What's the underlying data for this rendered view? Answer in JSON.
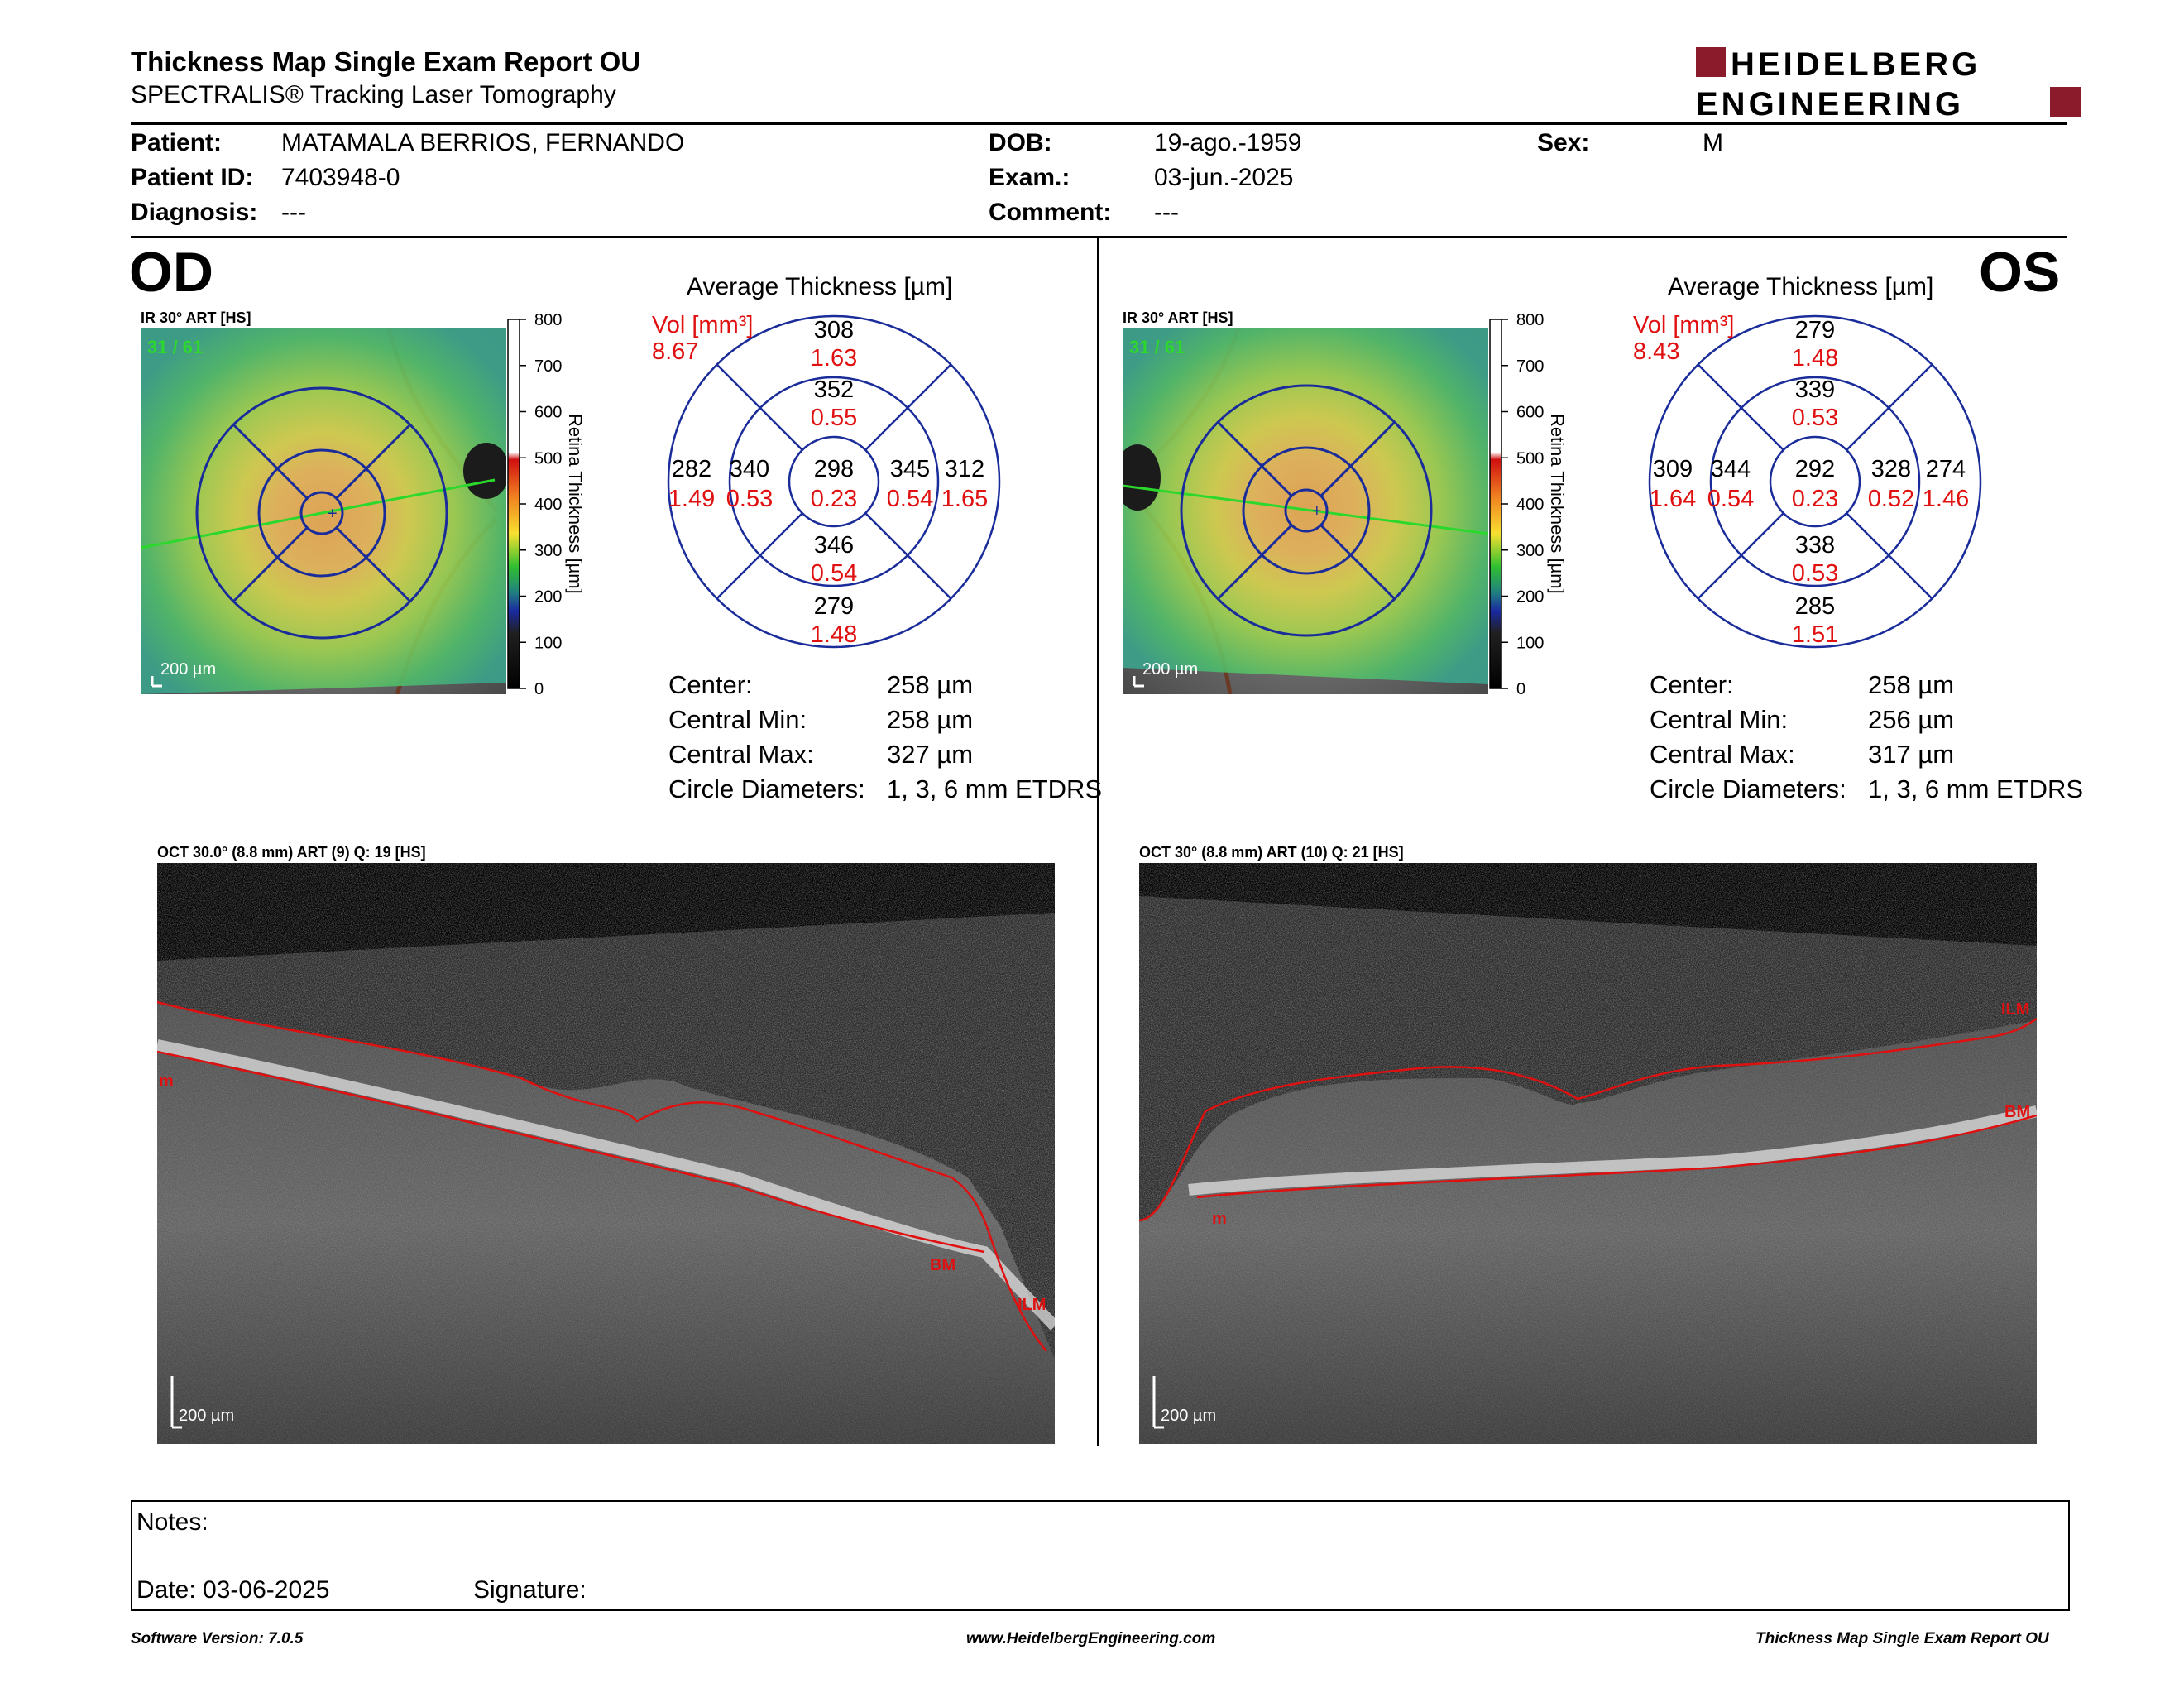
{
  "header": {
    "title": "Thickness Map Single Exam Report OU",
    "subtitle": "SPECTRALIS® Tracking Laser Tomography",
    "logo_line1": "HEIDELBERG",
    "logo_line2": "ENGINEERING",
    "logo_color": "#8b1a2b"
  },
  "patient": {
    "patient_label": "Patient:",
    "patient_value": "MATAMALA BERRIOS, FERNANDO",
    "patient_id_label": "Patient ID:",
    "patient_id_value": "7403948-0",
    "diagnosis_label": "Diagnosis:",
    "diagnosis_value": "---",
    "dob_label": "DOB:",
    "dob_value": "19-ago.-1959",
    "exam_label": "Exam.:",
    "exam_value": "03-jun.-2025",
    "comment_label": "Comment:",
    "comment_value": "---",
    "sex_label": "Sex:",
    "sex_value": "M"
  },
  "od": {
    "eye_label": "OD",
    "ir_label": "IR 30° ART [HS]",
    "frame_label": "31 / 61",
    "scale_label": "200 µm",
    "colorbar_ticks": [
      "800",
      "700",
      "600",
      "500",
      "400",
      "300",
      "200",
      "100",
      "0"
    ],
    "colorbar_title": "Retina Thickness [µm]",
    "avg_title": "Average Thickness [µm]",
    "vol_label": "Vol [mm³]",
    "vol_value": "8.67",
    "etdrs": {
      "center": {
        "t": "298",
        "v": "0.23"
      },
      "inner_sup": {
        "t": "352",
        "v": "0.55"
      },
      "inner_inf": {
        "t": "346",
        "v": "0.54"
      },
      "inner_left": {
        "t": "340",
        "v": "0.53"
      },
      "inner_right": {
        "t": "345",
        "v": "0.54"
      },
      "outer_sup": {
        "t": "308",
        "v": "1.63"
      },
      "outer_inf": {
        "t": "279",
        "v": "1.48"
      },
      "outer_left": {
        "t": "282",
        "v": "1.49"
      },
      "outer_right": {
        "t": "312",
        "v": "1.65"
      }
    },
    "center_label": "Center:",
    "center_value": "258 µm",
    "cmin_label": "Central Min:",
    "cmin_value": "258 µm",
    "cmax_label": "Central Max:",
    "cmax_value": "327 µm",
    "circ_label": "Circle Diameters:",
    "circ_value": "1, 3, 6 mm ETDRS",
    "oct_label": "OCT 30.0° (8.8 mm) ART (9) Q: 19 [HS]",
    "oct_scale": "200 µm",
    "layer_ilm": "ILM",
    "layer_bm": "BM",
    "layer_m": "m"
  },
  "os": {
    "eye_label": "OS",
    "ir_label": "IR 30° ART [HS]",
    "frame_label": "31 / 61",
    "scale_label": "200 µm",
    "colorbar_ticks": [
      "800",
      "700",
      "600",
      "500",
      "400",
      "300",
      "200",
      "100",
      "0"
    ],
    "colorbar_title": "Retina Thickness [µm]",
    "avg_title": "Average Thickness [µm]",
    "vol_label": "Vol [mm³]",
    "vol_value": "8.43",
    "etdrs": {
      "center": {
        "t": "292",
        "v": "0.23"
      },
      "inner_sup": {
        "t": "339",
        "v": "0.53"
      },
      "inner_inf": {
        "t": "338",
        "v": "0.53"
      },
      "inner_left": {
        "t": "344",
        "v": "0.54"
      },
      "inner_right": {
        "t": "328",
        "v": "0.52"
      },
      "outer_sup": {
        "t": "279",
        "v": "1.48"
      },
      "outer_inf": {
        "t": "285",
        "v": "1.51"
      },
      "outer_left": {
        "t": "309",
        "v": "1.64"
      },
      "outer_right": {
        "t": "274",
        "v": "1.46"
      }
    },
    "center_label": "Center:",
    "center_value": "258 µm",
    "cmin_label": "Central Min:",
    "cmin_value": "256 µm",
    "cmax_label": "Central Max:",
    "cmax_value": "317 µm",
    "circ_label": "Circle Diameters:",
    "circ_value": "1, 3, 6 mm ETDRS",
    "oct_label": "OCT 30° (8.8 mm) ART (10) Q: 21 [HS]",
    "oct_scale": "200 µm",
    "layer_ilm": "ILM",
    "layer_bm": "BM",
    "layer_m": "m"
  },
  "notes": {
    "notes_label": "Notes:",
    "date_label": "Date: 03-06-2025",
    "signature_label": "Signature:"
  },
  "footer": {
    "left": "Software Version: 7.0.5",
    "center": "www.HeidelbergEngineering.com",
    "right": "Thickness Map Single Exam Report OU"
  }
}
